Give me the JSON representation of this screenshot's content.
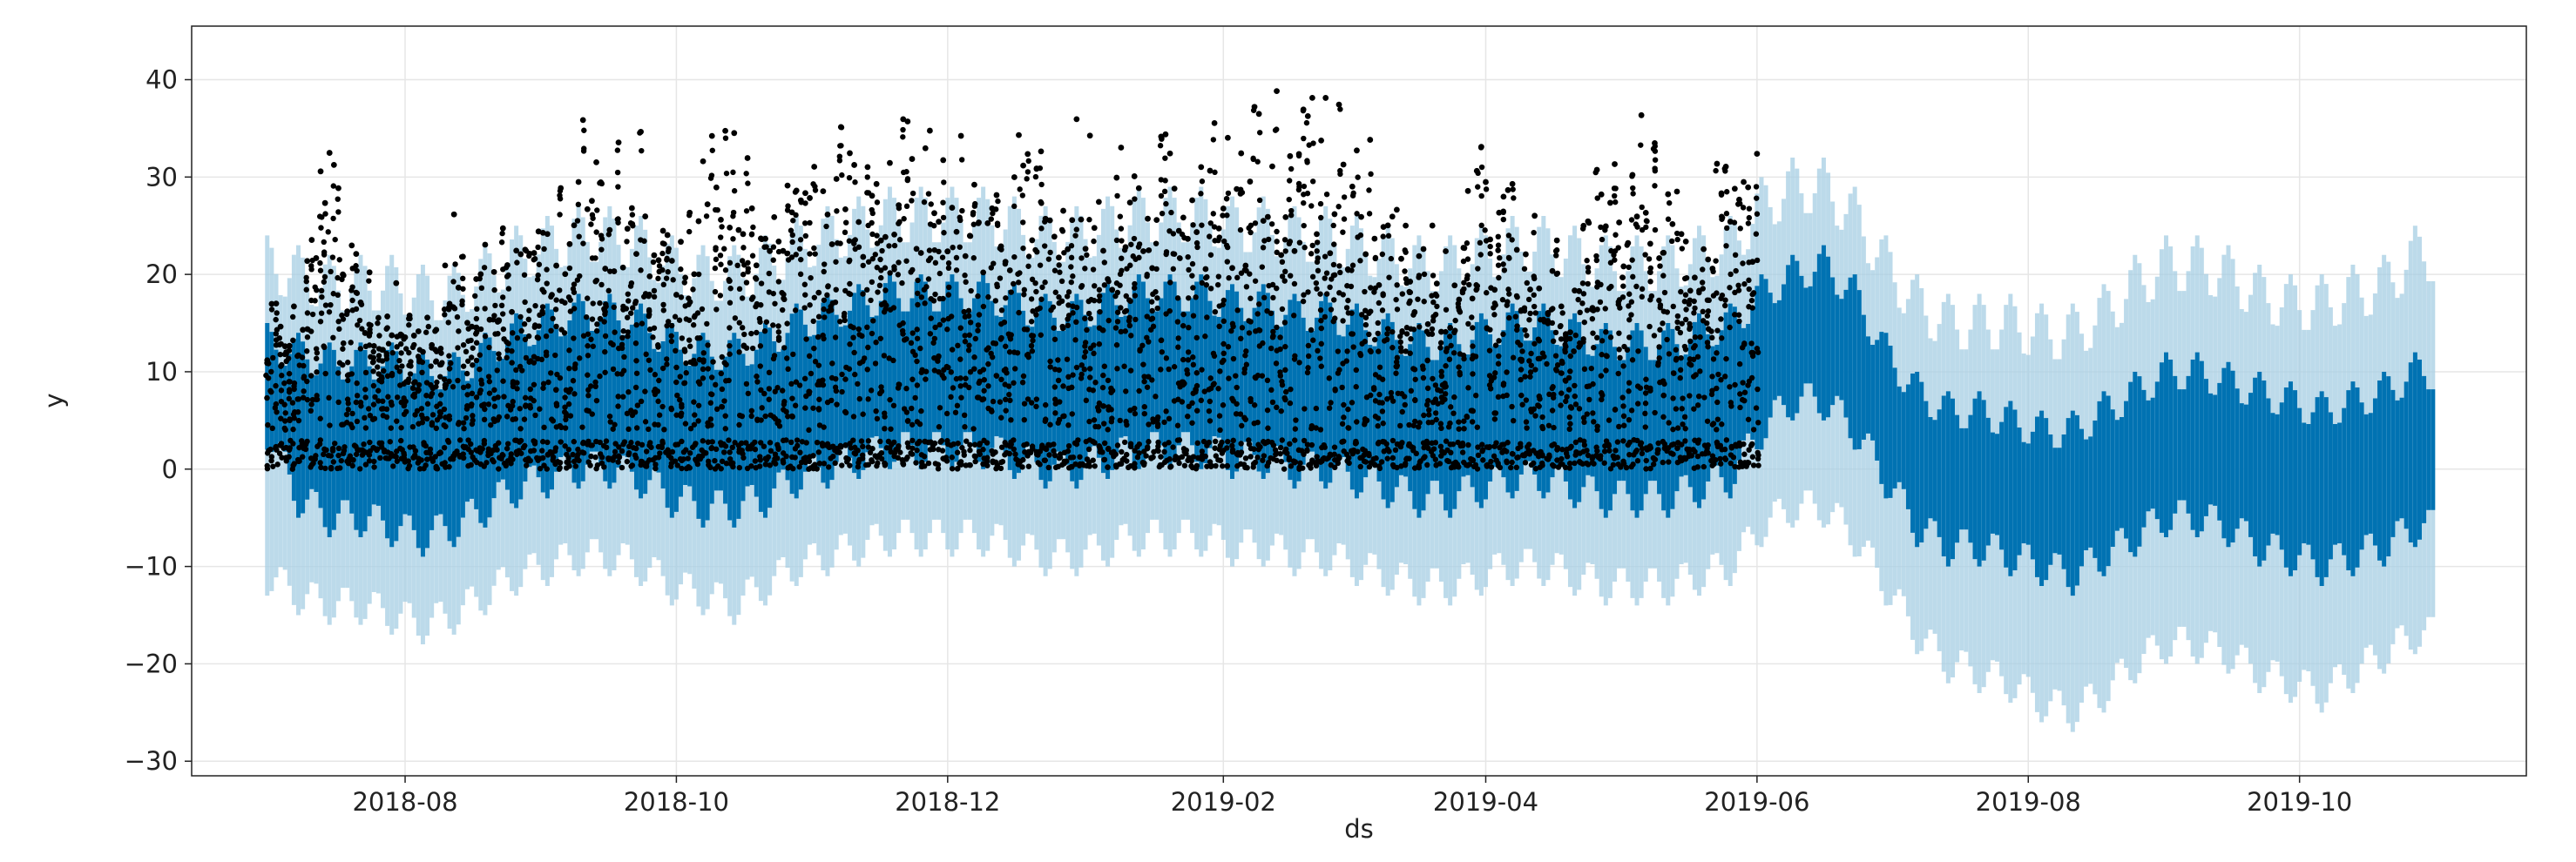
{
  "colors": {
    "observed": "#000000",
    "forecast": "#0072B2",
    "uncertainty": "#A6CEE3",
    "grid": "#E6E6E6",
    "axes": "#222222"
  },
  "chart_data": {
    "type": "line",
    "title": "",
    "xlabel": "ds",
    "ylabel": "y",
    "x_tick_labels": [
      "2018-08",
      "2018-10",
      "2018-12",
      "2019-02",
      "2019-04",
      "2019-06",
      "2019-08",
      "2019-10"
    ],
    "x_tick_dates": [
      "2018-08-01",
      "2018-10-01",
      "2018-12-01",
      "2019-02-01",
      "2019-04-01",
      "2019-06-01",
      "2019-08-01",
      "2019-10-01"
    ],
    "y_ticks": [
      -30,
      -20,
      -10,
      0,
      10,
      20,
      30,
      40
    ],
    "y_tick_labels": [
      "−30",
      "−20",
      "−10",
      "0",
      "10",
      "20",
      "30",
      "40"
    ],
    "xlim": [
      "2018-06-14",
      "2019-11-21"
    ],
    "ylim": [
      -31.5,
      45.5
    ],
    "grid": true,
    "legend": false,
    "observed_range": [
      "2018-07-01",
      "2019-06-01"
    ],
    "forecast_range": [
      "2018-07-01",
      "2019-10-31"
    ],
    "series": [
      {
        "name": "",
        "kind": "scatter",
        "role": "observed",
        "color": "#000000",
        "weekly": [
          [
            "2018-07-01",
            0,
            20
          ],
          [
            "2018-07-08",
            0,
            20
          ],
          [
            "2018-07-15",
            0,
            36
          ],
          [
            "2018-07-22",
            0,
            21
          ],
          [
            "2018-07-29",
            0,
            20
          ],
          [
            "2018-08-05",
            0,
            14
          ],
          [
            "2018-08-12",
            0,
            27
          ],
          [
            "2018-08-19",
            0,
            25
          ],
          [
            "2018-08-26",
            0,
            26
          ],
          [
            "2018-09-02",
            0,
            30
          ],
          [
            "2018-09-09",
            0,
            36
          ],
          [
            "2018-09-16",
            0,
            37
          ],
          [
            "2018-09-23",
            0,
            35
          ],
          [
            "2018-09-30",
            0,
            30
          ],
          [
            "2018-10-07",
            0,
            33
          ],
          [
            "2018-10-14",
            0,
            40
          ],
          [
            "2018-10-21",
            0,
            28
          ],
          [
            "2018-10-28",
            0,
            30
          ],
          [
            "2018-11-04",
            0,
            34
          ],
          [
            "2018-11-11",
            0,
            40
          ],
          [
            "2018-11-18",
            0,
            37
          ],
          [
            "2018-11-25",
            0,
            36
          ],
          [
            "2018-12-02",
            0,
            37
          ],
          [
            "2018-12-09",
            0,
            34
          ],
          [
            "2018-12-16",
            0,
            35
          ],
          [
            "2018-12-23",
            0,
            33
          ],
          [
            "2018-12-30",
            0,
            36
          ],
          [
            "2019-01-06",
            0,
            32
          ],
          [
            "2019-01-13",
            0,
            35
          ],
          [
            "2019-01-20",
            0,
            40
          ],
          [
            "2019-01-27",
            0,
            37
          ],
          [
            "2019-02-03",
            0,
            34
          ],
          [
            "2019-02-10",
            0,
            41
          ],
          [
            "2019-02-17",
            0,
            39
          ],
          [
            "2019-02-24",
            0,
            39
          ],
          [
            "2019-03-03",
            0,
            36
          ],
          [
            "2019-03-10",
            0,
            31
          ],
          [
            "2019-03-17",
            0,
            28
          ],
          [
            "2019-03-24",
            0,
            24
          ],
          [
            "2019-03-31",
            0,
            35
          ],
          [
            "2019-04-07",
            0,
            31
          ],
          [
            "2019-04-14",
            0,
            25
          ],
          [
            "2019-04-21",
            0,
            22
          ],
          [
            "2019-04-28",
            0,
            36
          ],
          [
            "2019-05-05",
            0,
            38
          ],
          [
            "2019-05-12",
            0,
            33
          ],
          [
            "2019-05-19",
            0,
            31
          ],
          [
            "2019-05-26",
            0,
            34
          ]
        ]
      },
      {
        "name": "",
        "kind": "line",
        "role": "yhat",
        "color": "#0072B2",
        "weekly": [
          [
            "2018-07-01",
            5,
            2,
            15
          ],
          [
            "2018-07-08",
            4,
            -5,
            14
          ],
          [
            "2018-07-15",
            3,
            -7,
            13
          ],
          [
            "2018-07-22",
            3,
            -7,
            13
          ],
          [
            "2018-07-29",
            3,
            -8,
            13
          ],
          [
            "2018-08-05",
            2,
            -9,
            12
          ],
          [
            "2018-08-12",
            3,
            -8,
            12
          ],
          [
            "2018-08-19",
            4,
            -6,
            14
          ],
          [
            "2018-08-26",
            6,
            -4,
            16
          ],
          [
            "2018-09-02",
            7,
            -3,
            17
          ],
          [
            "2018-09-09",
            8,
            -2,
            18
          ],
          [
            "2018-09-16",
            8,
            -2,
            18
          ],
          [
            "2018-09-23",
            7,
            -3,
            17
          ],
          [
            "2018-09-30",
            5,
            -5,
            15
          ],
          [
            "2018-10-07",
            4,
            -6,
            14
          ],
          [
            "2018-10-14",
            4,
            -6,
            14
          ],
          [
            "2018-10-21",
            5,
            -5,
            15
          ],
          [
            "2018-10-28",
            7,
            -3,
            17
          ],
          [
            "2018-11-04",
            8,
            -2,
            18
          ],
          [
            "2018-11-11",
            9,
            -1,
            19
          ],
          [
            "2018-11-18",
            10,
            0,
            20
          ],
          [
            "2018-11-25",
            10,
            0,
            20
          ],
          [
            "2018-12-02",
            10,
            0,
            20
          ],
          [
            "2018-12-09",
            10,
            0,
            20
          ],
          [
            "2018-12-16",
            9,
            -1,
            19
          ],
          [
            "2018-12-23",
            8,
            -2,
            18
          ],
          [
            "2018-12-30",
            8,
            -2,
            18
          ],
          [
            "2019-01-06",
            9,
            -1,
            19
          ],
          [
            "2019-01-13",
            10,
            0,
            20
          ],
          [
            "2019-01-20",
            10,
            0,
            20
          ],
          [
            "2019-01-27",
            10,
            0,
            20
          ],
          [
            "2019-02-03",
            9,
            -1,
            19
          ],
          [
            "2019-02-10",
            9,
            -1,
            19
          ],
          [
            "2019-02-17",
            8,
            -2,
            18
          ],
          [
            "2019-02-24",
            8,
            -2,
            18
          ],
          [
            "2019-03-03",
            7,
            -3,
            17
          ],
          [
            "2019-03-10",
            6,
            -4,
            16
          ],
          [
            "2019-03-17",
            5,
            -5,
            15
          ],
          [
            "2019-03-24",
            5,
            -5,
            15
          ],
          [
            "2019-03-31",
            6,
            -4,
            16
          ],
          [
            "2019-04-07",
            7,
            -3,
            17
          ],
          [
            "2019-04-14",
            7,
            -3,
            17
          ],
          [
            "2019-04-21",
            6,
            -4,
            16
          ],
          [
            "2019-04-28",
            5,
            -5,
            15
          ],
          [
            "2019-05-05",
            5,
            -5,
            15
          ],
          [
            "2019-05-12",
            5,
            -5,
            15
          ],
          [
            "2019-05-19",
            6,
            -4,
            16
          ],
          [
            "2019-05-26",
            7,
            -3,
            17
          ],
          [
            "2019-06-02",
            11,
            2,
            20
          ],
          [
            "2019-06-09",
            13,
            5,
            22
          ],
          [
            "2019-06-16",
            13,
            5,
            23
          ],
          [
            "2019-06-23",
            10,
            2,
            20
          ],
          [
            "2019-06-30",
            5,
            -3,
            14
          ],
          [
            "2019-07-07",
            1,
            -8,
            10
          ],
          [
            "2019-07-14",
            -1,
            -10,
            8
          ],
          [
            "2019-07-21",
            -1,
            -10,
            8
          ],
          [
            "2019-07-28",
            -2,
            -11,
            7
          ],
          [
            "2019-08-04",
            -3,
            -12,
            6
          ],
          [
            "2019-08-11",
            -3,
            -13,
            6
          ],
          [
            "2019-08-18",
            -1,
            -11,
            8
          ],
          [
            "2019-08-25",
            1,
            -9,
            10
          ],
          [
            "2019-09-01",
            3,
            -7,
            12
          ],
          [
            "2019-09-08",
            3,
            -7,
            12
          ],
          [
            "2019-09-15",
            2,
            -8,
            11
          ],
          [
            "2019-09-22",
            0,
            -10,
            10
          ],
          [
            "2019-09-29",
            -1,
            -11,
            9
          ],
          [
            "2019-10-06",
            -2,
            -12,
            8
          ],
          [
            "2019-10-13",
            -1,
            -11,
            9
          ],
          [
            "2019-10-20",
            0,
            -10,
            10
          ],
          [
            "2019-10-27",
            2,
            -8,
            12
          ]
        ]
      },
      {
        "name": "",
        "kind": "band",
        "role": "uncertainty",
        "color": "#A6CEE3",
        "weekly": [
          [
            "2018-07-01",
            -13,
            24
          ],
          [
            "2018-07-08",
            -15,
            23
          ],
          [
            "2018-07-15",
            -16,
            22
          ],
          [
            "2018-07-22",
            -16,
            22
          ],
          [
            "2018-07-29",
            -17,
            22
          ],
          [
            "2018-08-05",
            -18,
            21
          ],
          [
            "2018-08-12",
            -17,
            21
          ],
          [
            "2018-08-19",
            -15,
            23
          ],
          [
            "2018-08-26",
            -13,
            25
          ],
          [
            "2018-09-02",
            -12,
            26
          ],
          [
            "2018-09-09",
            -11,
            27
          ],
          [
            "2018-09-16",
            -11,
            27
          ],
          [
            "2018-09-23",
            -12,
            26
          ],
          [
            "2018-09-30",
            -14,
            24
          ],
          [
            "2018-10-07",
            -15,
            23
          ],
          [
            "2018-10-14",
            -16,
            23
          ],
          [
            "2018-10-21",
            -14,
            24
          ],
          [
            "2018-10-28",
            -12,
            26
          ],
          [
            "2018-11-04",
            -11,
            27
          ],
          [
            "2018-11-11",
            -10,
            28
          ],
          [
            "2018-11-18",
            -9,
            29
          ],
          [
            "2018-11-25",
            -9,
            29
          ],
          [
            "2018-12-02",
            -9,
            29
          ],
          [
            "2018-12-09",
            -9,
            29
          ],
          [
            "2018-12-16",
            -10,
            28
          ],
          [
            "2018-12-23",
            -11,
            27
          ],
          [
            "2018-12-30",
            -11,
            27
          ],
          [
            "2019-01-06",
            -10,
            28
          ],
          [
            "2019-01-13",
            -9,
            29
          ],
          [
            "2019-01-20",
            -9,
            29
          ],
          [
            "2019-01-27",
            -9,
            29
          ],
          [
            "2019-02-03",
            -10,
            28
          ],
          [
            "2019-02-10",
            -10,
            28
          ],
          [
            "2019-02-17",
            -11,
            27
          ],
          [
            "2019-02-24",
            -11,
            27
          ],
          [
            "2019-03-03",
            -12,
            26
          ],
          [
            "2019-03-10",
            -13,
            25
          ],
          [
            "2019-03-17",
            -14,
            24
          ],
          [
            "2019-03-24",
            -14,
            24
          ],
          [
            "2019-03-31",
            -13,
            25
          ],
          [
            "2019-04-07",
            -12,
            26
          ],
          [
            "2019-04-14",
            -12,
            26
          ],
          [
            "2019-04-21",
            -13,
            25
          ],
          [
            "2019-04-28",
            -14,
            24
          ],
          [
            "2019-05-05",
            -14,
            24
          ],
          [
            "2019-05-12",
            -14,
            24
          ],
          [
            "2019-05-19",
            -13,
            25
          ],
          [
            "2019-05-26",
            -12,
            26
          ],
          [
            "2019-06-02",
            -8,
            30
          ],
          [
            "2019-06-09",
            -6,
            32
          ],
          [
            "2019-06-16",
            -6,
            32
          ],
          [
            "2019-06-23",
            -9,
            29
          ],
          [
            "2019-06-30",
            -14,
            24
          ],
          [
            "2019-07-07",
            -19,
            20
          ],
          [
            "2019-07-14",
            -22,
            18
          ],
          [
            "2019-07-21",
            -23,
            18
          ],
          [
            "2019-07-28",
            -24,
            18
          ],
          [
            "2019-08-04",
            -26,
            17
          ],
          [
            "2019-08-11",
            -27,
            17
          ],
          [
            "2019-08-18",
            -25,
            19
          ],
          [
            "2019-08-25",
            -22,
            22
          ],
          [
            "2019-09-01",
            -20,
            24
          ],
          [
            "2019-09-08",
            -20,
            24
          ],
          [
            "2019-09-15",
            -21,
            23
          ],
          [
            "2019-09-22",
            -23,
            21
          ],
          [
            "2019-09-29",
            -24,
            20
          ],
          [
            "2019-10-06",
            -25,
            20
          ],
          [
            "2019-10-13",
            -23,
            21
          ],
          [
            "2019-10-20",
            -21,
            22
          ],
          [
            "2019-10-27",
            -19,
            25
          ]
        ]
      }
    ]
  }
}
